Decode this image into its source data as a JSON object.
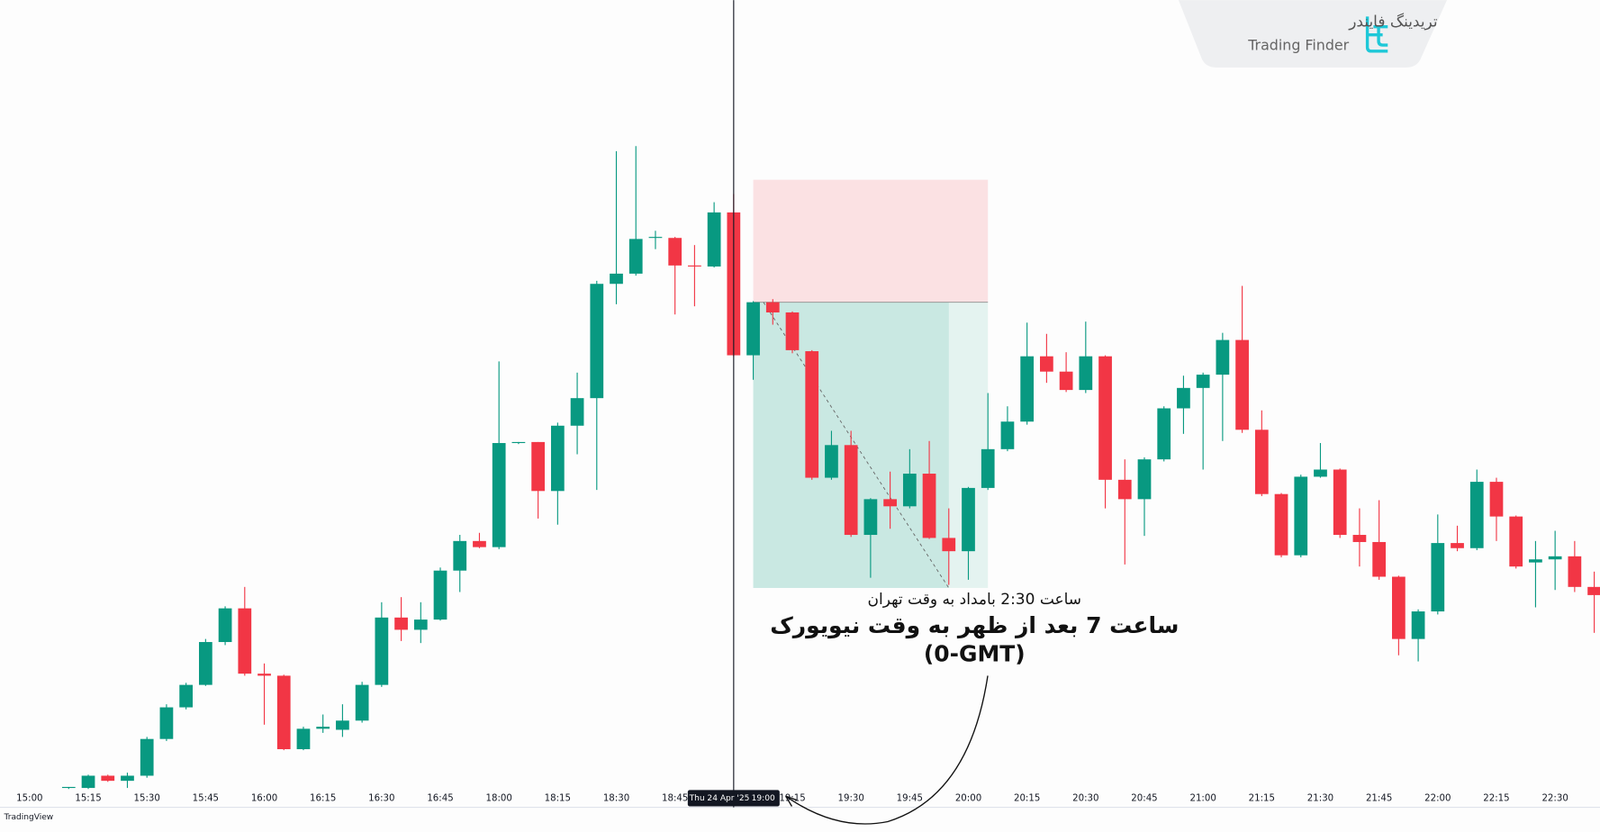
{
  "chart_data": {
    "type": "candlestick",
    "categories": [
      "15:00",
      null,
      null,
      "15:15",
      null,
      null,
      "15:30",
      null,
      null,
      "15:45",
      null,
      null,
      "16:00",
      null,
      null,
      "16:15",
      null,
      null,
      "16:30",
      null,
      null,
      "16:45",
      null,
      null,
      "18:00",
      null,
      null,
      "18:15",
      null,
      null,
      "18:30",
      null,
      null,
      "18:45",
      null,
      null,
      "19:00",
      null,
      null,
      "19:15",
      null,
      null,
      "19:30",
      null,
      null,
      "19:45",
      null,
      null,
      "20:00",
      null,
      null,
      "20:15",
      null,
      null,
      "20:30",
      null,
      null,
      "20:45",
      null,
      null,
      "21:00",
      null,
      null,
      "21:15",
      null,
      null,
      "21:30",
      null,
      null,
      "21:45",
      null,
      null,
      "22:00",
      null,
      null,
      "22:15",
      null,
      null,
      "22:30",
      null,
      null
    ],
    "open": [
      null,
      null,
      28,
      28,
      40,
      35,
      40,
      76,
      107,
      129,
      171,
      204,
      140,
      138,
      66,
      86,
      85,
      94,
      129,
      195,
      183,
      193,
      241,
      270,
      264,
      366,
      367,
      319,
      383,
      410,
      522,
      532,
      567,
      567,
      540,
      539,
      592,
      452,
      504,
      494,
      456,
      332,
      364,
      276,
      311,
      304,
      336,
      273,
      260,
      322,
      360,
      387,
      451,
      436,
      418,
      451,
      330,
      311,
      350,
      400,
      420,
      433,
      467,
      379,
      316,
      256,
      333,
      340,
      276,
      269,
      235,
      174,
      201,
      268,
      263,
      328,
      294,
      249,
      252,
      255,
      225
    ],
    "high": [
      null,
      null,
      29,
      41,
      41,
      43,
      78,
      110,
      131,
      174,
      206,
      225,
      150,
      139,
      88,
      100,
      110,
      132,
      210,
      215,
      210,
      244,
      276,
      278,
      446,
      367,
      367,
      386,
      435,
      525,
      652,
      657,
      574,
      568,
      560,
      602,
      610,
      505,
      507,
      495,
      457,
      378,
      378,
      312,
      338,
      360,
      368,
      302,
      323,
      415,
      402,
      484,
      473,
      455,
      485,
      452,
      350,
      352,
      402,
      432,
      435,
      474,
      520,
      398,
      317,
      335,
      366,
      341,
      302,
      310,
      236,
      203,
      296,
      285,
      340,
      332,
      295,
      270,
      280,
      270,
      240
    ],
    "low": [
      null,
      null,
      27,
      27,
      34,
      28,
      38,
      74,
      105,
      128,
      168,
      138,
      90,
      65,
      65,
      82,
      78,
      92,
      127,
      172,
      170,
      192,
      220,
      263,
      262,
      365,
      292,
      286,
      355,
      320,
      502,
      530,
      556,
      492,
      500,
      538,
      451,
      428,
      482,
      454,
      330,
      330,
      274,
      234,
      282,
      302,
      272,
      227,
      232,
      320,
      358,
      384,
      425,
      416,
      415,
      302,
      247,
      275,
      348,
      375,
      340,
      368,
      376,
      314,
      254,
      254,
      332,
      273,
      245,
      232,
      158,
      152,
      198,
      260,
      261,
      270,
      243,
      205,
      222,
      220,
      180
    ],
    "close": [
      null,
      null,
      29,
      40,
      35,
      40,
      76,
      107,
      129,
      171,
      204,
      140,
      138,
      66,
      86,
      88,
      94,
      129,
      195,
      183,
      193,
      241,
      270,
      264,
      366,
      367,
      319,
      383,
      410,
      522,
      532,
      566,
      568,
      540,
      539,
      592,
      452,
      504,
      494,
      457,
      332,
      364,
      276,
      311,
      304,
      336,
      273,
      260,
      322,
      360,
      387,
      451,
      436,
      418,
      451,
      330,
      311,
      350,
      400,
      420,
      433,
      467,
      379,
      316,
      256,
      333,
      340,
      276,
      269,
      235,
      174,
      201,
      268,
      263,
      328,
      294,
      245,
      252,
      255,
      225,
      217
    ],
    "up_color": "#089981",
    "down_color": "#f23645",
    "ylim": [
      0,
      800
    ],
    "crosshair": {
      "at": 36,
      "date": "Thu 24 Apr '25"
    },
    "position": {
      "from": 37,
      "to": 49,
      "current": 47,
      "stop": 624,
      "entry": 504,
      "target": 224
    },
    "annotations": [
      "ساعت 2:30 بامداد به وقت تهران",
      "ساعت 7 بعد از ظهر به وقت نیویورک",
      "(0-GMT)"
    ],
    "watermark": "TradingView",
    "logo": {
      "fa": "تریدینگ فایندر",
      "en": "Trading Finder"
    }
  }
}
